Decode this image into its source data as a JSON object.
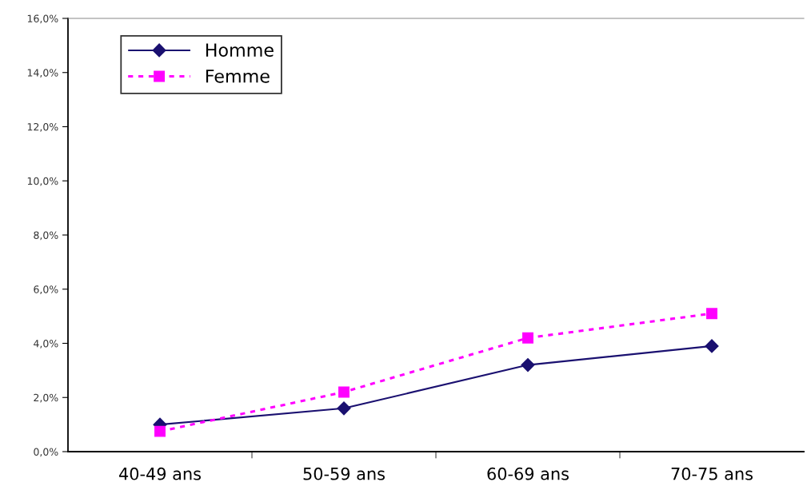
{
  "chart_data": {
    "type": "line",
    "categories": [
      "40-49 ans",
      "50-59 ans",
      "60-69 ans",
      "70-75 ans"
    ],
    "series": [
      {
        "name": "Homme",
        "color": "#1a1070",
        "values": [
          1.0,
          1.6,
          3.2,
          3.9
        ],
        "marker": "diamond",
        "line_style": "solid"
      },
      {
        "name": "Femme",
        "color": "#ff00ff",
        "values": [
          0.75,
          2.2,
          4.2,
          5.1
        ],
        "marker": "square",
        "line_style": "dotted"
      }
    ],
    "ylim": [
      0,
      16
    ],
    "yticks": [
      {
        "value": 0,
        "label": "0,0%"
      },
      {
        "value": 2,
        "label": "2,0%"
      },
      {
        "value": 4,
        "label": "4,0%"
      },
      {
        "value": 6,
        "label": "6,0%"
      },
      {
        "value": 8,
        "label": "8,0%"
      },
      {
        "value": 10,
        "label": "10,0%"
      },
      {
        "value": 12,
        "label": "12,0%"
      },
      {
        "value": 14,
        "label": "14,0%"
      },
      {
        "value": 16,
        "label": "16,0%"
      }
    ],
    "grid": false,
    "legend": "top left"
  }
}
